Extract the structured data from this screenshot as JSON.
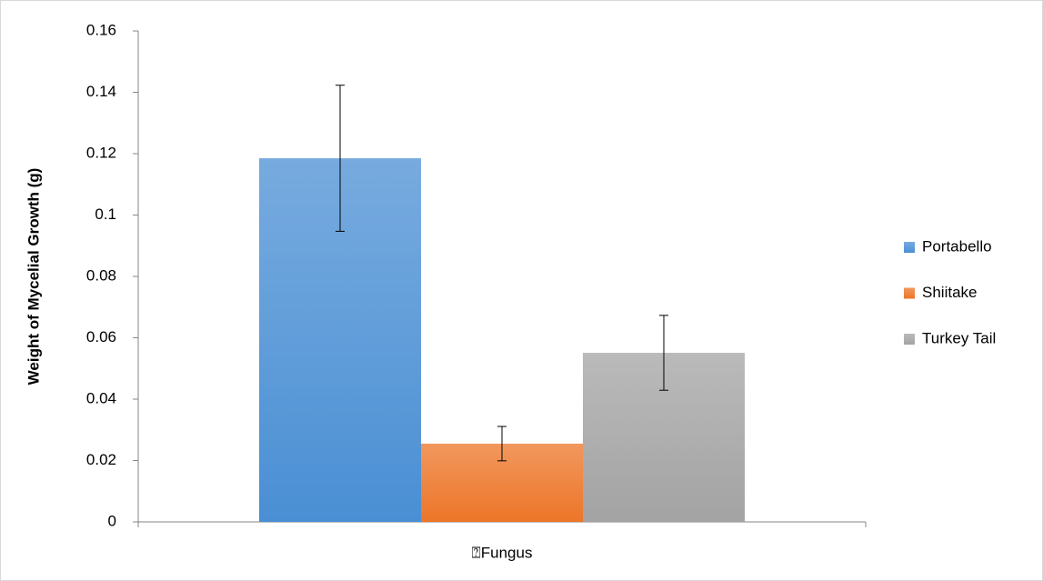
{
  "chart_data": {
    "type": "bar",
    "y_label": "Weight of Mycelial Growth (g)",
    "categories": [
      "⍰Fungus"
    ],
    "series": [
      {
        "name": "Portabello",
        "color": "#4a8fd4",
        "values": [
          0.1185
        ],
        "errors": [
          0.0238
        ]
      },
      {
        "name": "Shiitake",
        "color": "#ed7528",
        "values": [
          0.0255
        ],
        "errors": [
          0.0056
        ]
      },
      {
        "name": "Turkey Tail",
        "color": "#a3a3a3",
        "values": [
          0.0551
        ],
        "errors": [
          0.0122
        ]
      }
    ],
    "ylim": [
      0,
      0.16
    ],
    "yticks": [
      0,
      0.02,
      0.04,
      0.06,
      0.08,
      0.1,
      0.12,
      0.14,
      0.16
    ],
    "legend": "right"
  }
}
